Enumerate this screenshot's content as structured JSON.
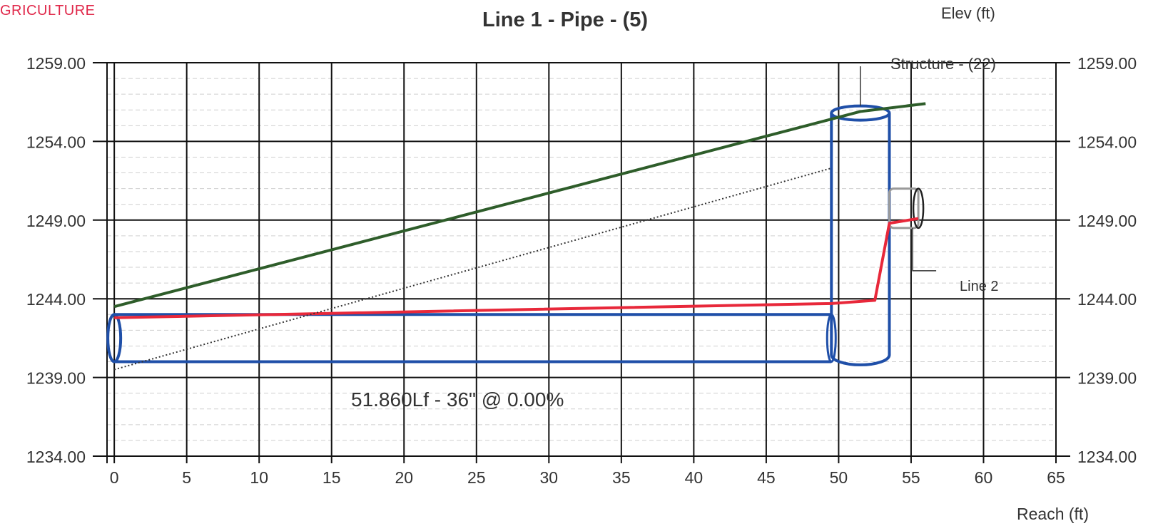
{
  "header": {
    "brand_text": "GRICULTURE",
    "title": "Line 1 - Pipe - (5)",
    "right_axis_title": "Elev (ft)",
    "x_axis_title": "Reach (ft)"
  },
  "annotations": {
    "pipe_label": "51.860Lf - 36\" @ 0.00%",
    "structure_label": "Structure - (22)",
    "line2_label": "Line 2"
  },
  "colors": {
    "brand": "#e0284a",
    "ground_line": "#2e5d2a",
    "hydraulic_line": "#e8283a",
    "pipe_outline": "#1f4fa8",
    "energy_line": "#333333",
    "grid_major": "#111111",
    "grid_minor": "#cfcfcf",
    "line2_outline": "#9a9a9a"
  },
  "chart_data": {
    "type": "line",
    "title": "Line 1 - Pipe - (5)",
    "xlabel": "Reach (ft)",
    "ylabel": "Elev (ft)",
    "xlim": [
      -0.5,
      65
    ],
    "ylim": [
      1234,
      1259
    ],
    "x_ticks": [
      0,
      5,
      10,
      15,
      20,
      25,
      30,
      35,
      40,
      45,
      50,
      55,
      60,
      65
    ],
    "y_ticks": [
      1234.0,
      1239.0,
      1244.0,
      1249.0,
      1254.0,
      1259.0
    ],
    "y_tick_labels": [
      "1234.00",
      "1239.00",
      "1244.00",
      "1249.00",
      "1254.00",
      "1259.00"
    ],
    "grid": true,
    "series": [
      {
        "key": "ground",
        "style": "solid",
        "points": [
          [
            0,
            1243.5
          ],
          [
            51.5,
            1255.9
          ],
          [
            56,
            1256.4
          ]
        ]
      },
      {
        "key": "hgl",
        "style": "solid",
        "points": [
          [
            0,
            1242.8
          ],
          [
            49.5,
            1243.7
          ],
          [
            52.5,
            1243.9
          ],
          [
            53.5,
            1248.8
          ],
          [
            55.5,
            1249.1
          ]
        ]
      },
      {
        "key": "egl",
        "style": "dotted",
        "points": [
          [
            0,
            1239.5
          ],
          [
            49.5,
            1252.3
          ]
        ]
      }
    ],
    "pipe": {
      "x_start": 0,
      "x_end": 49.5,
      "invert": 1240.0,
      "crown": 1243.0,
      "length_ft": 51.86,
      "diameter_in": 36,
      "slope_pct": 0.0
    },
    "structure": {
      "x_left": 49.5,
      "x_right": 53.5,
      "bottom": 1239.8,
      "top": 1255.8
    },
    "line2": {
      "x_start": 53.5,
      "x_end": 55.5,
      "invert": 1248.5,
      "crown": 1251.0
    }
  }
}
